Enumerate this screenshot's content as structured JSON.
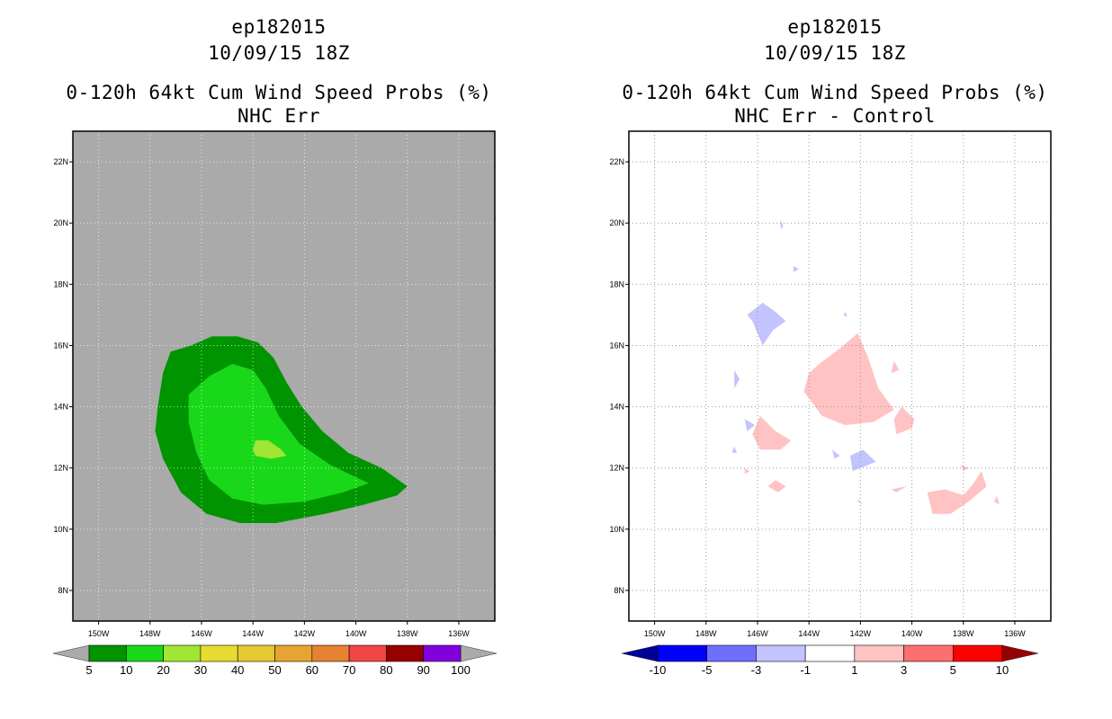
{
  "left_panel": {
    "title_lines": [
      "ep182015",
      "10/09/15 18Z",
      "0-120h 64kt Cum Wind Speed Probs (%)",
      "NHC Err"
    ]
  },
  "right_panel": {
    "title_lines": [
      "ep182015",
      "10/09/15 18Z",
      "0-120h 64kt Cum Wind Speed Probs (%)",
      "NHC Err - Control"
    ]
  },
  "chart_data": [
    {
      "type": "contour",
      "title": "0-120h 64kt Cum Wind Speed Probs (%)",
      "subtitle": "NHC Err",
      "storm": "ep182015",
      "datetime": "10/09/15 18Z",
      "x_ticks": [
        "150W",
        "148W",
        "146W",
        "144W",
        "142W",
        "140W",
        "138W",
        "136W"
      ],
      "y_ticks": [
        "8N",
        "10N",
        "12N",
        "14N",
        "16N",
        "18N",
        "20N",
        "22N"
      ],
      "xlim": [
        -151.0,
        -134.6
      ],
      "ylim": [
        7.0,
        23.0
      ],
      "background_color": "#aaaaaa",
      "levels": [
        {
          "min": 5,
          "max": 10,
          "color": "#009400",
          "polygon": [
            [
              -147.2,
              15.8
            ],
            [
              -146.4,
              16.0
            ],
            [
              -145.6,
              16.3
            ],
            [
              -144.6,
              16.3
            ],
            [
              -143.8,
              16.1
            ],
            [
              -143.2,
              15.6
            ],
            [
              -142.7,
              14.8
            ],
            [
              -142.1,
              14.0
            ],
            [
              -141.3,
              13.2
            ],
            [
              -140.3,
              12.5
            ],
            [
              -139.0,
              12.0
            ],
            [
              -138.0,
              11.4
            ],
            [
              -138.4,
              11.1
            ],
            [
              -139.7,
              10.8
            ],
            [
              -141.2,
              10.5
            ],
            [
              -143.1,
              10.2
            ],
            [
              -144.5,
              10.2
            ],
            [
              -145.8,
              10.5
            ],
            [
              -146.8,
              11.2
            ],
            [
              -147.5,
              12.3
            ],
            [
              -147.8,
              13.2
            ],
            [
              -147.7,
              14.0
            ],
            [
              -147.5,
              15.1
            ]
          ]
        },
        {
          "min": 10,
          "max": 20,
          "color": "#19d819",
          "polygon": [
            [
              -146.5,
              14.4
            ],
            [
              -145.7,
              15.0
            ],
            [
              -144.8,
              15.4
            ],
            [
              -144.0,
              15.2
            ],
            [
              -143.5,
              14.6
            ],
            [
              -143.0,
              13.7
            ],
            [
              -142.2,
              12.8
            ],
            [
              -141.0,
              12.1
            ],
            [
              -139.5,
              11.5
            ],
            [
              -140.5,
              11.2
            ],
            [
              -142.0,
              10.9
            ],
            [
              -143.6,
              10.8
            ],
            [
              -144.8,
              11.0
            ],
            [
              -145.7,
              11.6
            ],
            [
              -146.2,
              12.5
            ],
            [
              -146.5,
              13.5
            ]
          ]
        },
        {
          "min": 20,
          "max": 30,
          "color": "#a0e632",
          "polygon": [
            [
              -143.9,
              12.9
            ],
            [
              -143.4,
              12.9
            ],
            [
              -142.9,
              12.6
            ],
            [
              -142.7,
              12.4
            ],
            [
              -143.3,
              12.3
            ],
            [
              -143.9,
              12.4
            ],
            [
              -144.0,
              12.6
            ]
          ]
        }
      ],
      "colorbar": {
        "labels": [
          "5",
          "10",
          "20",
          "30",
          "40",
          "50",
          "60",
          "70",
          "80",
          "90",
          "100"
        ],
        "colors": [
          "#009400",
          "#19d819",
          "#a0e632",
          "#e6dc32",
          "#e6c832",
          "#e6a532",
          "#e68232",
          "#f04646",
          "#960000",
          "#8200dc"
        ],
        "left_arrow_color": "#aaaaaa",
        "right_arrow_color": "#aaaaaa"
      }
    },
    {
      "type": "contour",
      "title": "0-120h 64kt Cum Wind Speed Probs (%)",
      "subtitle": "NHC Err - Control",
      "storm": "ep182015",
      "datetime": "10/09/15 18Z",
      "x_ticks": [
        "150W",
        "148W",
        "146W",
        "144W",
        "142W",
        "140W",
        "138W",
        "136W"
      ],
      "y_ticks": [
        "8N",
        "10N",
        "12N",
        "14N",
        "16N",
        "18N",
        "20N",
        "22N"
      ],
      "xlim": [
        -151.0,
        -134.6
      ],
      "ylim": [
        7.0,
        23.0
      ],
      "background_color": "#ffffff",
      "grid": "dotted",
      "regions": [
        {
          "range": "1 to 3",
          "color": "#ffc3c3",
          "polygon": [
            [
              -143.6,
              15.4
            ],
            [
              -142.8,
              15.9
            ],
            [
              -142.1,
              16.4
            ],
            [
              -141.7,
              15.6
            ],
            [
              -141.3,
              14.6
            ],
            [
              -140.7,
              13.9
            ],
            [
              -141.5,
              13.5
            ],
            [
              -142.6,
              13.4
            ],
            [
              -143.5,
              13.7
            ],
            [
              -144.2,
              14.5
            ],
            [
              -144.0,
              15.1
            ]
          ]
        },
        {
          "range": "1 to 3",
          "color": "#ffc3c3",
          "polygon": [
            [
              -145.9,
              13.7
            ],
            [
              -145.3,
              13.2
            ],
            [
              -144.7,
              12.9
            ],
            [
              -145.1,
              12.6
            ],
            [
              -145.9,
              12.6
            ],
            [
              -146.2,
              13.1
            ]
          ]
        },
        {
          "range": "1 to 3",
          "color": "#ffc3c3",
          "polygon": [
            [
              -140.4,
              14.0
            ],
            [
              -139.9,
              13.6
            ],
            [
              -140.0,
              13.3
            ],
            [
              -140.6,
              13.1
            ],
            [
              -140.7,
              13.6
            ]
          ]
        },
        {
          "range": "1 to 3",
          "color": "#ffc3c3",
          "polygon": [
            [
              -140.7,
              15.5
            ],
            [
              -140.5,
              15.2
            ],
            [
              -140.8,
              15.1
            ]
          ]
        },
        {
          "range": "1 to 3",
          "color": "#ffc3c3",
          "polygon": [
            [
              -145.3,
              11.6
            ],
            [
              -144.9,
              11.4
            ],
            [
              -145.2,
              11.2
            ],
            [
              -145.6,
              11.4
            ]
          ]
        },
        {
          "range": "1 to 3",
          "color": "#ffc3c3",
          "polygon": [
            [
              -139.4,
              11.2
            ],
            [
              -138.7,
              11.3
            ],
            [
              -138.0,
              11.1
            ],
            [
              -137.6,
              11.5
            ],
            [
              -137.3,
              11.9
            ],
            [
              -137.1,
              11.4
            ],
            [
              -137.8,
              10.9
            ],
            [
              -138.5,
              10.5
            ],
            [
              -139.2,
              10.5
            ]
          ]
        },
        {
          "range": "1 to 3",
          "color": "#ffc3c3",
          "polygon": [
            [
              -140.8,
              11.3
            ],
            [
              -140.2,
              11.4
            ],
            [
              -140.6,
              11.2
            ]
          ]
        },
        {
          "range": "1 to 3",
          "color": "#ffc3c3",
          "polygon": [
            [
              -136.7,
              11.1
            ],
            [
              -136.6,
              10.8
            ],
            [
              -136.8,
              10.9
            ]
          ]
        },
        {
          "range": "1 to 3",
          "color": "#ffc3c3",
          "polygon": [
            [
              -138.1,
              12.1
            ],
            [
              -137.8,
              12.0
            ],
            [
              -138.0,
              11.9
            ]
          ]
        },
        {
          "range": "1 to 3",
          "color": "#ffc3c3",
          "polygon": [
            [
              -146.5,
              12.0
            ],
            [
              -146.3,
              11.9
            ],
            [
              -146.5,
              11.8
            ]
          ]
        },
        {
          "range": "1 to 3",
          "color": "#ffc3c3",
          "polygon": [
            [
              -142.1,
              11.0
            ],
            [
              -141.9,
              10.8
            ],
            [
              -142.1,
              10.9
            ]
          ]
        },
        {
          "range": "-3 to -1",
          "color": "#c3c3ff",
          "polygon": [
            [
              -145.8,
              17.4
            ],
            [
              -145.3,
              17.1
            ],
            [
              -144.9,
              16.8
            ],
            [
              -145.4,
              16.5
            ],
            [
              -145.8,
              16.0
            ],
            [
              -146.2,
              16.8
            ],
            [
              -146.4,
              17.0
            ]
          ]
        },
        {
          "range": "-3 to -1",
          "color": "#c3c3ff",
          "polygon": [
            [
              -142.4,
              12.4
            ],
            [
              -141.9,
              12.6
            ],
            [
              -141.4,
              12.2
            ],
            [
              -142.0,
              12.0
            ],
            [
              -142.3,
              11.9
            ]
          ]
        },
        {
          "range": "-3 to -1",
          "color": "#c3c3ff",
          "polygon": [
            [
              -146.9,
              15.2
            ],
            [
              -146.7,
              14.9
            ],
            [
              -146.9,
              14.6
            ]
          ]
        },
        {
          "range": "-3 to -1",
          "color": "#c3c3ff",
          "polygon": [
            [
              -146.5,
              13.6
            ],
            [
              -146.1,
              13.4
            ],
            [
              -146.4,
              13.2
            ]
          ]
        },
        {
          "range": "-3 to -1",
          "color": "#c3c3ff",
          "polygon": [
            [
              -144.6,
              18.6
            ],
            [
              -144.4,
              18.5
            ],
            [
              -144.6,
              18.4
            ]
          ]
        },
        {
          "range": "-3 to -1",
          "color": "#c3c3ff",
          "polygon": [
            [
              -145.1,
              20.1
            ],
            [
              -145.0,
              19.9
            ],
            [
              -145.1,
              19.8
            ]
          ]
        },
        {
          "range": "-3 to -1",
          "color": "#c3c3ff",
          "polygon": [
            [
              -143.1,
              12.6
            ],
            [
              -142.8,
              12.4
            ],
            [
              -143.0,
              12.3
            ]
          ]
        },
        {
          "range": "-3 to -1",
          "color": "#c3c3ff",
          "polygon": [
            [
              -146.9,
              12.7
            ],
            [
              -146.8,
              12.5
            ],
            [
              -147.0,
              12.5
            ]
          ]
        },
        {
          "range": "-3 to -1",
          "color": "#c3c3ff",
          "polygon": [
            [
              -142.6,
              17.1
            ],
            [
              -142.5,
              16.95
            ],
            [
              -142.65,
              16.98
            ]
          ]
        }
      ],
      "colorbar": {
        "labels": [
          "-10",
          "-5",
          "-3",
          "-1",
          "1",
          "3",
          "5",
          "10"
        ],
        "colors": [
          "#0000ff",
          "#6e6eff",
          "#c3c3ff",
          "#ffffff",
          "#ffc3c3",
          "#ff6e6e",
          "#ff0000"
        ],
        "left_arrow_color": "#000096",
        "right_arrow_color": "#960000"
      }
    }
  ]
}
